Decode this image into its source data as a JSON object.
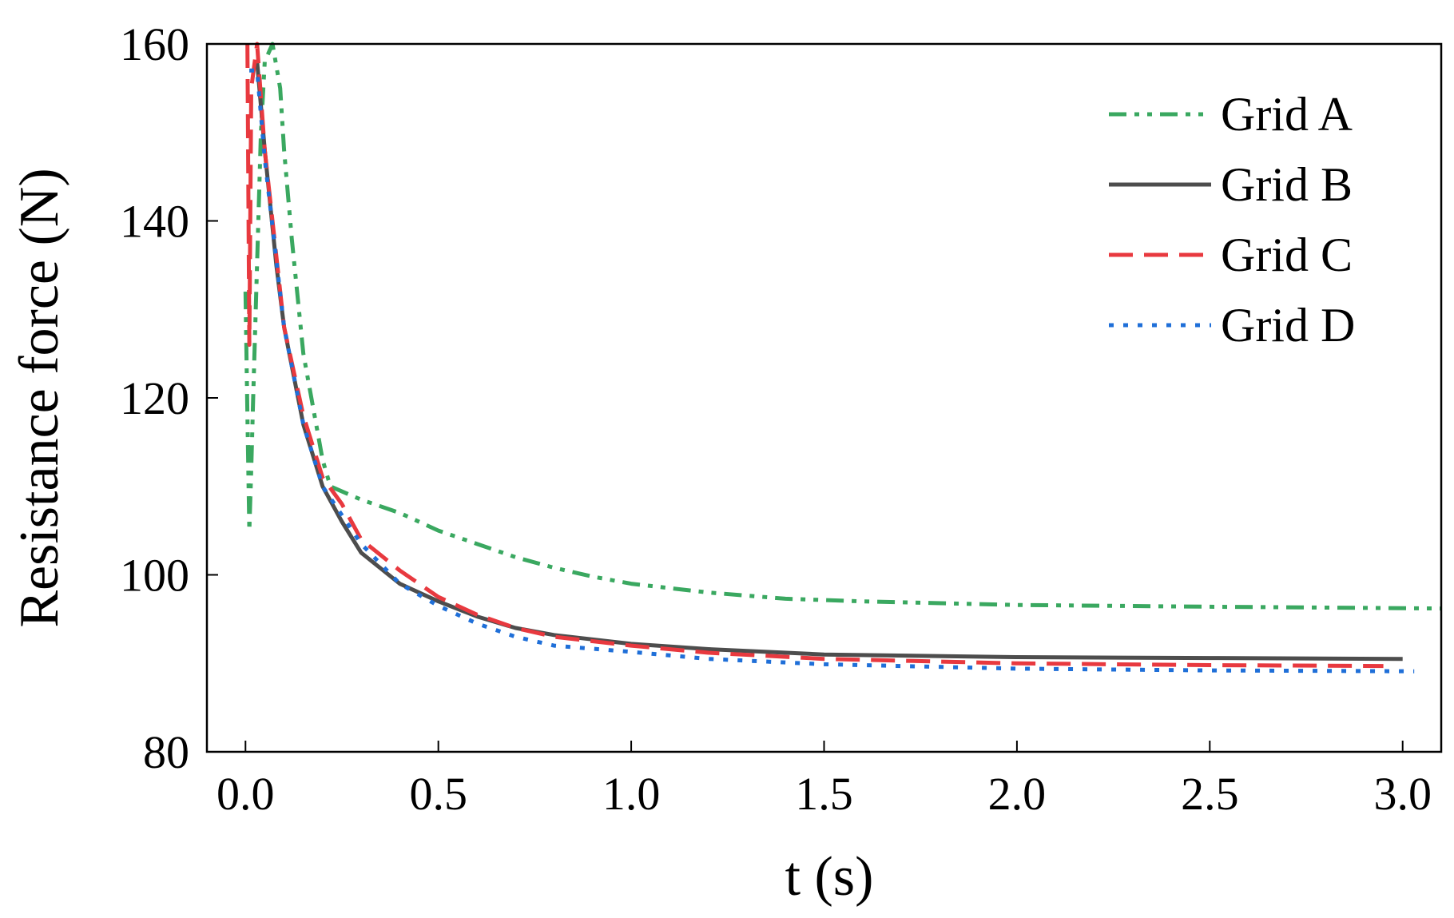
{
  "chart_data": {
    "type": "line",
    "xlabel": "t (s)",
    "ylabel": "Resistance force (N)",
    "xlim": [
      -0.1,
      3.1
    ],
    "ylim": [
      80,
      160
    ],
    "xticks": [
      {
        "value": 0,
        "label": "0.0"
      },
      0.5,
      {
        "value": 1,
        "label": "1.0"
      },
      1.5,
      {
        "value": 2,
        "label": "2.0"
      },
      2.5,
      {
        "value": 3,
        "label": "3.0"
      }
    ],
    "yticks": [
      80,
      100,
      120,
      140,
      160
    ],
    "legend": "upper right",
    "series": [
      {
        "name": "Grid A",
        "color": "#3aa860",
        "dash": "dash-dot-dot",
        "x": [
          0.0,
          0.005,
          0.01,
          0.015,
          0.02,
          0.04,
          0.05,
          0.07,
          0.09,
          0.1,
          0.12,
          0.15,
          0.2,
          0.22,
          0.3,
          0.4,
          0.5,
          0.6,
          0.7,
          0.8,
          0.9,
          1.0,
          1.2,
          1.4,
          1.6,
          2.0,
          2.5,
          3.1
        ],
        "values": [
          132,
          118,
          105,
          112,
          120,
          150,
          158,
          160,
          155,
          148,
          138,
          125,
          113,
          110,
          108.5,
          107,
          105,
          103.5,
          102,
          100.8,
          99.8,
          99,
          98,
          97.3,
          97,
          96.6,
          96.4,
          96.2
        ]
      },
      {
        "name": "Grid B",
        "color": "#4d4d4d",
        "dash": "solid",
        "x": [
          0.03,
          0.05,
          0.08,
          0.1,
          0.15,
          0.2,
          0.25,
          0.3,
          0.4,
          0.5,
          0.6,
          0.7,
          0.8,
          1.0,
          1.2,
          1.5,
          2.0,
          2.5,
          3.0
        ],
        "values": [
          158,
          148,
          135,
          128,
          117,
          110,
          106,
          102.5,
          99,
          97,
          95.3,
          94,
          93.2,
          92.2,
          91.6,
          91,
          90.7,
          90.6,
          90.5
        ]
      },
      {
        "name": "Grid C",
        "color": "#e8393f",
        "dash": "dash",
        "x": [
          0.005,
          0.01,
          0.015,
          0.03,
          0.05,
          0.1,
          0.15,
          0.2,
          0.25,
          0.3,
          0.4,
          0.5,
          0.6,
          0.7,
          0.8,
          1.0,
          1.2,
          1.5,
          2.0,
          2.5,
          2.95
        ],
        "values": [
          160,
          126,
          155,
          160,
          148,
          128,
          118,
          111,
          108,
          104,
          100.5,
          97.5,
          95.5,
          94,
          93,
          92,
          91.2,
          90.5,
          90,
          89.8,
          89.7
        ]
      },
      {
        "name": "Grid D",
        "color": "#1f6fd8",
        "dash": "dot",
        "x": [
          0.01,
          0.03,
          0.05,
          0.1,
          0.15,
          0.2,
          0.3,
          0.4,
          0.5,
          0.6,
          0.7,
          0.8,
          1.0,
          1.2,
          1.5,
          2.0,
          2.5,
          3.03
        ],
        "values": [
          157,
          157,
          147,
          128,
          117,
          110,
          103.5,
          99,
          96.5,
          94.5,
          93,
          92,
          91.3,
          90.5,
          89.9,
          89.4,
          89.2,
          89.1
        ]
      }
    ]
  }
}
